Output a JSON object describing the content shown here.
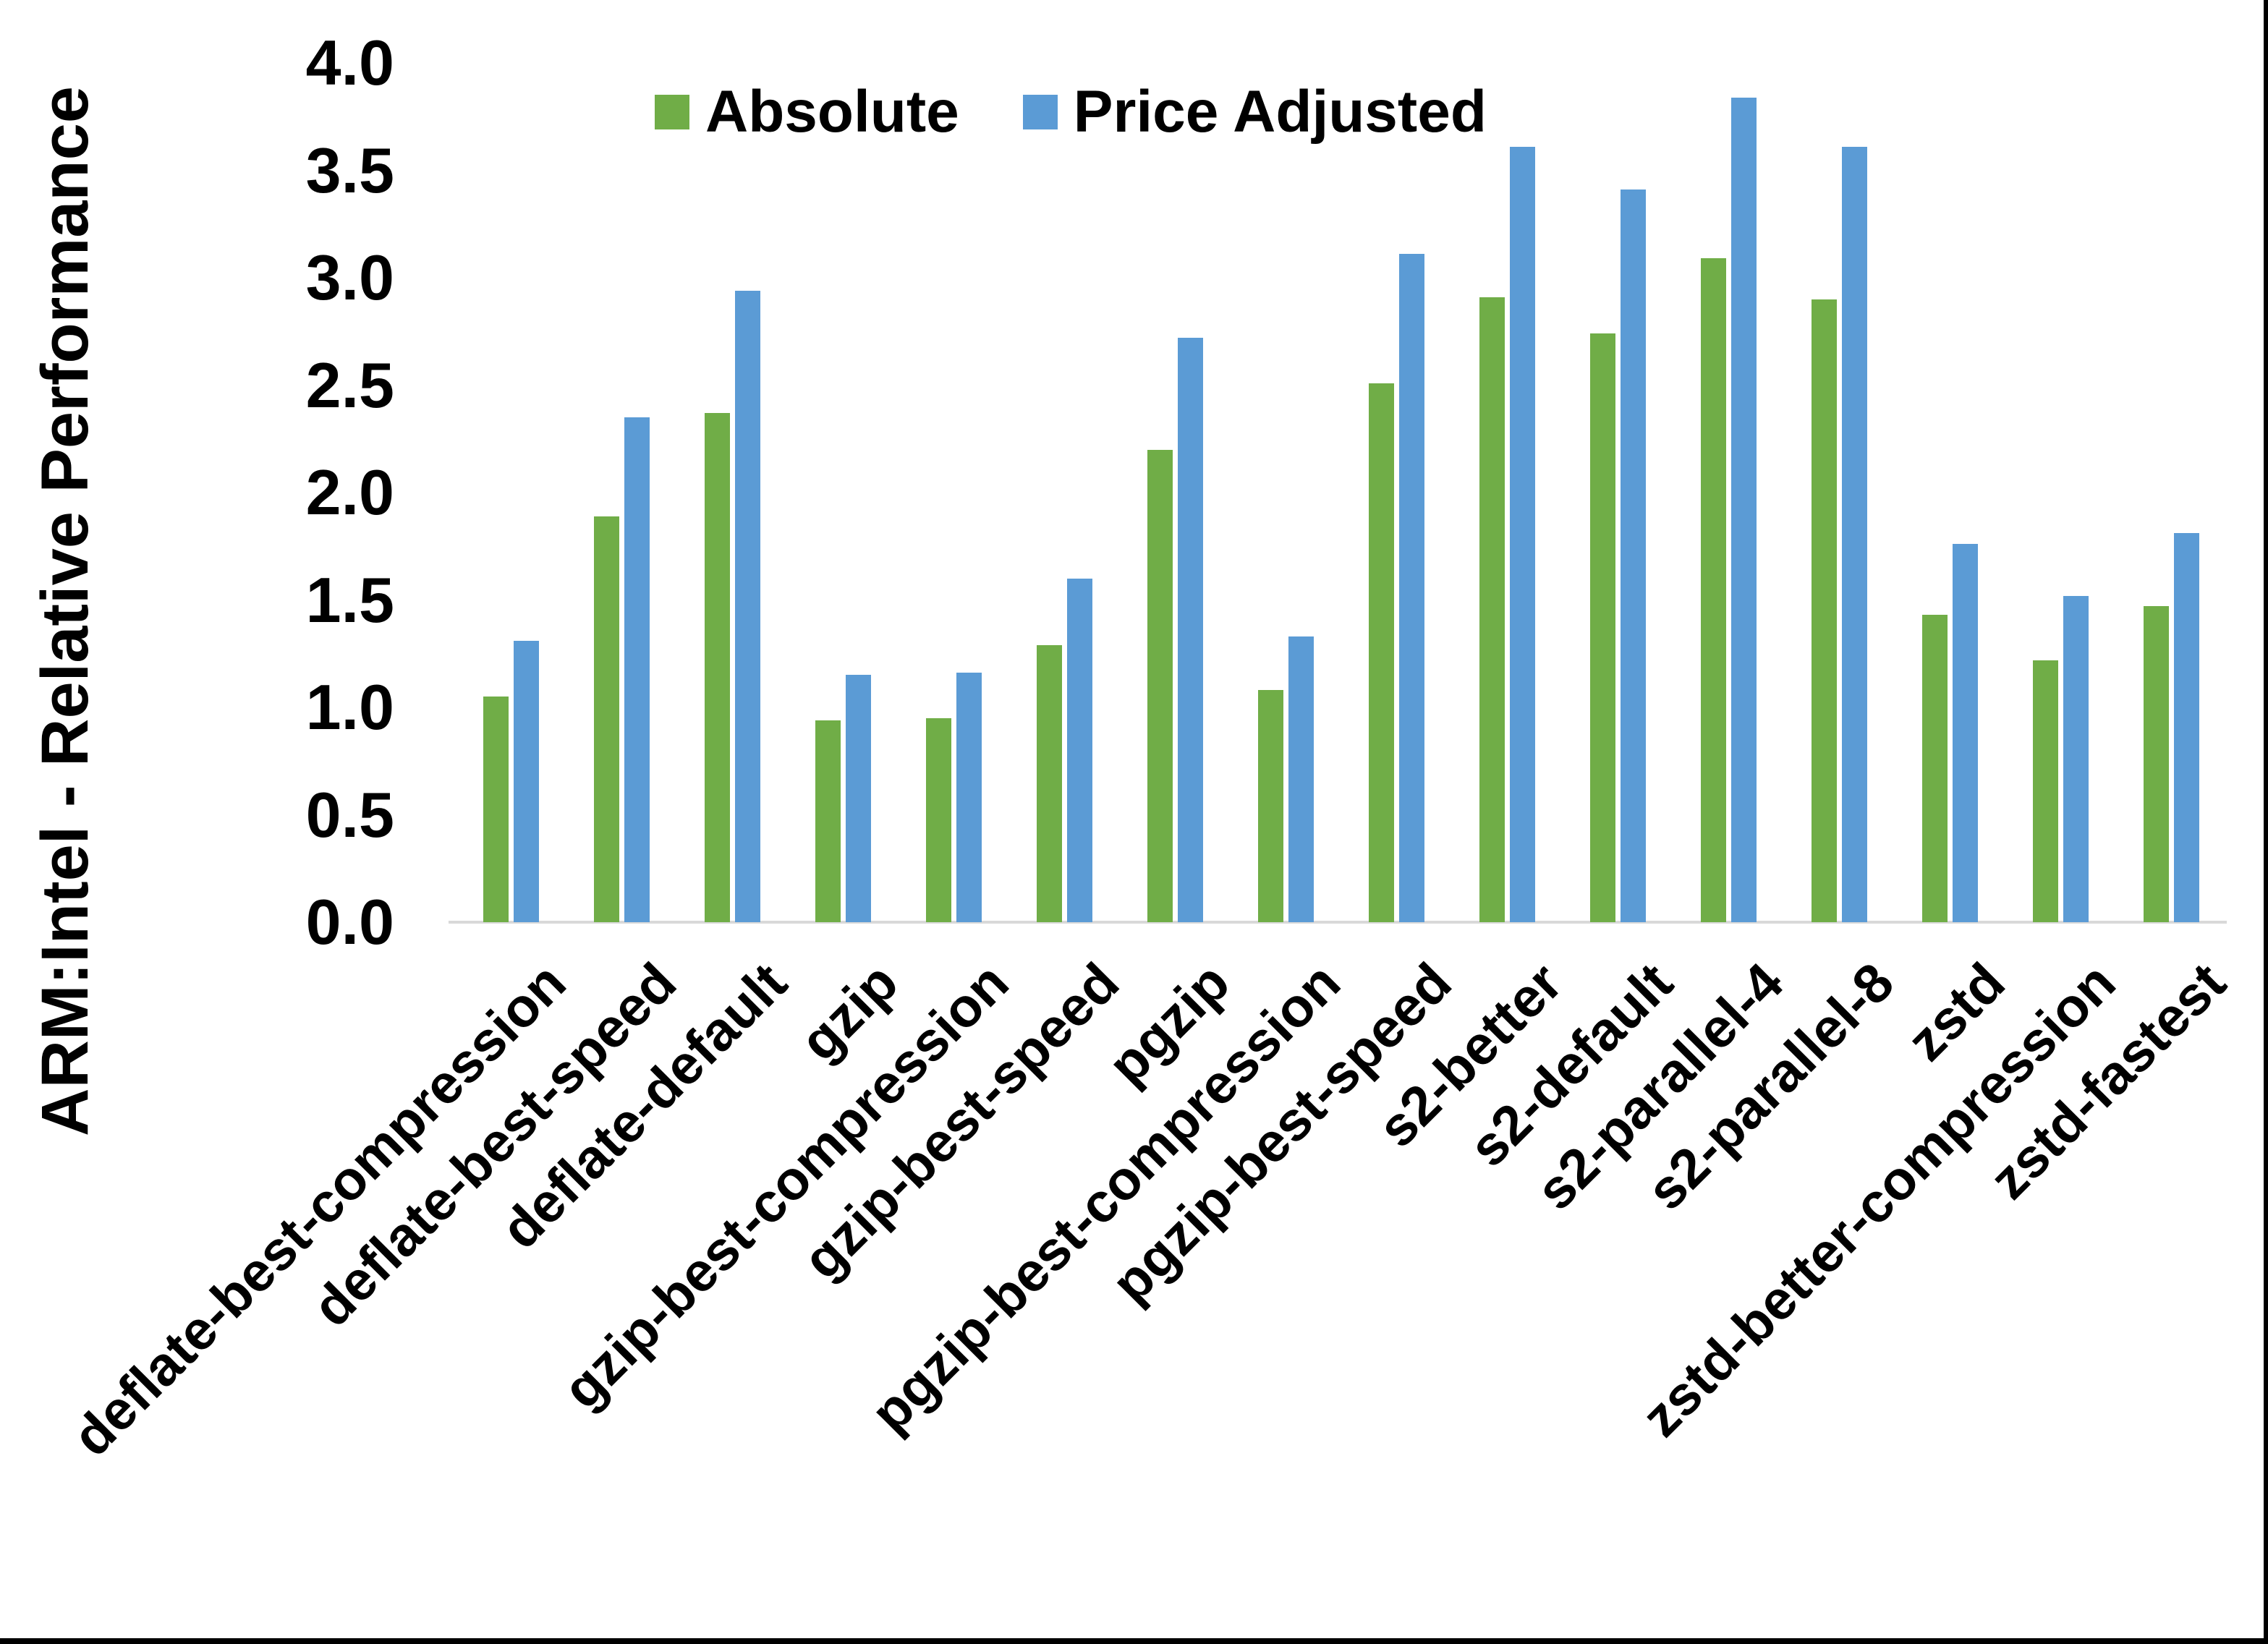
{
  "chart": {
    "y_axis_title": "ARM:Intel - Relative Performance",
    "axis_line_color": "#D9D9D9",
    "text_color": "#000000",
    "background_color": "#FFFFFF",
    "frame_border_color": "#000000",
    "ytick_labels": [
      "0.0",
      "0.5",
      "1.0",
      "1.5",
      "2.0",
      "2.5",
      "3.0",
      "3.5",
      "4.0"
    ]
  },
  "legend": {
    "items": [
      {
        "label": "Absolute",
        "color": "#70AD47"
      },
      {
        "label": "Price Adjusted",
        "color": "#5B9BD5"
      }
    ]
  },
  "chart_data": {
    "type": "bar",
    "title": "",
    "xlabel": "",
    "ylabel": "ARM:Intel - Relative Performance",
    "ylim": [
      0,
      4
    ],
    "ytick_step": 0.5,
    "grid": false,
    "legend_position": "top-center",
    "categories": [
      "deflate-best-compression",
      "deflate-best-speed",
      "deflate-default",
      "gzip",
      "gzip-best-compression",
      "gzip-best-speed",
      "pgzip",
      "pgzip-best-compression",
      "pgzip-best-speed",
      "s2-better",
      "s2-default",
      "s2-parallel-4",
      "s2-parallel-8",
      "zstd",
      "zstd-better-compression",
      "zstd-fastest"
    ],
    "series": [
      {
        "name": "Absolute",
        "color": "#70AD47",
        "values": [
          1.05,
          1.89,
          2.37,
          0.94,
          0.95,
          1.29,
          2.2,
          1.08,
          2.51,
          2.91,
          2.74,
          3.09,
          2.9,
          1.43,
          1.22,
          1.47
        ]
      },
      {
        "name": "Price Adjusted",
        "color": "#5B9BD5",
        "values": [
          1.31,
          2.35,
          2.94,
          1.15,
          1.16,
          1.6,
          2.72,
          1.33,
          3.11,
          3.61,
          3.41,
          3.84,
          3.61,
          1.76,
          1.52,
          1.81
        ]
      }
    ]
  }
}
